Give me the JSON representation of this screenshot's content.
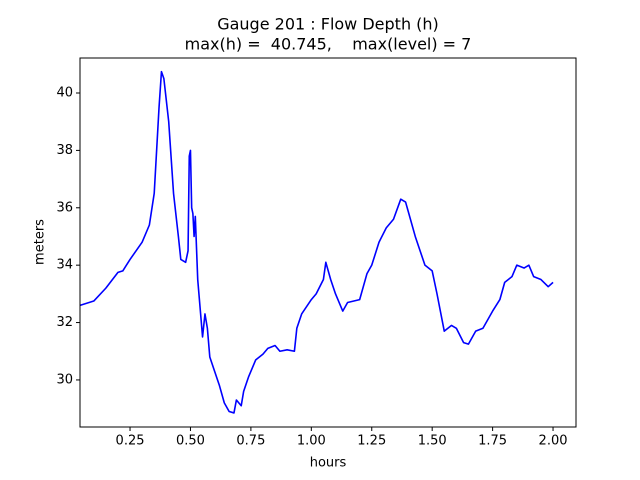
{
  "chart_data": {
    "type": "line",
    "title": [
      "Gauge 201 : Flow Depth (h)",
      "max(h) =  40.745,    max(level) = 7"
    ],
    "xlabel": "hours",
    "ylabel": "meters",
    "x": [
      0.043,
      0.1,
      0.15,
      0.2,
      0.22,
      0.25,
      0.3,
      0.33,
      0.35,
      0.37,
      0.38,
      0.39,
      0.41,
      0.43,
      0.45,
      0.46,
      0.48,
      0.49,
      0.495,
      0.5,
      0.505,
      0.51,
      0.515,
      0.52,
      0.53,
      0.55,
      0.56,
      0.57,
      0.58,
      0.6,
      0.62,
      0.64,
      0.66,
      0.68,
      0.69,
      0.71,
      0.72,
      0.74,
      0.77,
      0.8,
      0.82,
      0.85,
      0.87,
      0.9,
      0.93,
      0.94,
      0.96,
      1.0,
      1.02,
      1.05,
      1.06,
      1.08,
      1.1,
      1.13,
      1.15,
      1.2,
      1.23,
      1.25,
      1.28,
      1.31,
      1.34,
      1.37,
      1.39,
      1.4,
      1.43,
      1.47,
      1.5,
      1.52,
      1.55,
      1.58,
      1.6,
      1.63,
      1.65,
      1.68,
      1.71,
      1.75,
      1.78,
      1.8,
      1.83,
      1.85,
      1.88,
      1.9,
      1.92,
      1.95,
      1.98,
      2.0
    ],
    "series": [
      {
        "color": "#0000ff",
        "values": [
          32.6,
          32.75,
          33.2,
          33.75,
          33.8,
          34.2,
          34.8,
          35.4,
          36.5,
          39.5,
          40.745,
          40.5,
          39,
          36.5,
          35,
          34.2,
          34.1,
          34.5,
          37.8,
          38.0,
          36,
          35.8,
          35,
          35.7,
          33.5,
          31.5,
          32.3,
          31.8,
          30.8,
          30.3,
          29.8,
          29.2,
          28.9,
          28.85,
          29.3,
          29.1,
          29.6,
          30.1,
          30.7,
          30.9,
          31.1,
          31.2,
          31.0,
          31.05,
          31.0,
          31.8,
          32.3,
          32.8,
          33.0,
          33.5,
          34.1,
          33.5,
          33.0,
          32.4,
          32.7,
          32.8,
          33.7,
          34.0,
          34.8,
          35.3,
          35.6,
          36.3,
          36.2,
          35.9,
          35.0,
          34.0,
          33.8,
          33.0,
          31.7,
          31.9,
          31.8,
          31.3,
          31.25,
          31.7,
          31.8,
          32.4,
          32.8,
          33.4,
          33.6,
          34.0,
          33.9,
          34.0,
          33.6,
          33.5,
          33.25,
          33.4
        ]
      }
    ],
    "xlim": [
      0.043,
      2.095
    ],
    "ylim": [
      28.36,
      41.22
    ],
    "xticks": [
      {
        "value": 0.25,
        "label": "0.25"
      },
      {
        "value": 0.5,
        "label": "0.50"
      },
      {
        "value": 0.75,
        "label": "0.75"
      },
      {
        "value": 1.0,
        "label": "1.00"
      },
      {
        "value": 1.25,
        "label": "1.25"
      },
      {
        "value": 1.5,
        "label": "1.50"
      },
      {
        "value": 1.75,
        "label": "1.75"
      },
      {
        "value": 2.0,
        "label": "2.00"
      }
    ],
    "yticks": [
      30,
      32,
      34,
      36,
      38,
      40
    ],
    "grid": false
  }
}
